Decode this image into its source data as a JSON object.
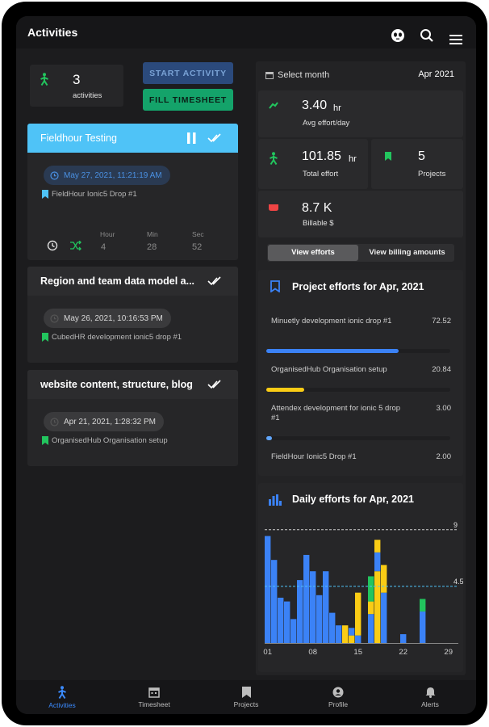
{
  "appbar": {
    "title": "Activities"
  },
  "summary": {
    "count": "3",
    "count_label": "activities"
  },
  "buttons": {
    "start_activity": "START ACTIVITY",
    "fill_timesheet": "FILL TIMESHEET"
  },
  "activities": [
    {
      "title": "Fieldhour Testing",
      "datetime": "May 27, 2021, 11:21:19 AM",
      "project": "FieldHour Ionic5 Drop #1",
      "timer": {
        "hour_label": "Hour",
        "min_label": "Min",
        "sec_label": "Sec",
        "hour": "4",
        "min": "28",
        "sec": "52"
      }
    },
    {
      "title": "Region and team data model a...",
      "datetime": "May 26, 2021, 10:16:53 PM",
      "project": "CubedHR development ionic5 drop #1"
    },
    {
      "title": "website content, structure, blog",
      "datetime": "Apr 21, 2021, 1:28:32 PM",
      "project": "OrganisedHub Organisation setup"
    }
  ],
  "month": {
    "label": "Select month",
    "value": "Apr 2021"
  },
  "stats": {
    "avg": {
      "value": "3.40",
      "unit": "hr",
      "label": "Avg effort/day"
    },
    "total": {
      "value": "101.85",
      "unit": "hr",
      "label": "Total effort"
    },
    "projects": {
      "value": "5",
      "label": "Projects"
    },
    "billable": {
      "value": "8.7 K",
      "label": "Billable $"
    }
  },
  "toggle": {
    "efforts": "View efforts",
    "billing": "View billing amounts",
    "selected": "efforts"
  },
  "project_efforts": {
    "title": "Project efforts for Apr, 2021",
    "max": 72.52,
    "items": [
      {
        "name": "Minuetly development ionic drop #1",
        "value": "72.52",
        "amount": 72.52,
        "color": "#3b82f6"
      },
      {
        "name": "OrganisedHub Organisation setup",
        "value": "20.84",
        "amount": 20.84,
        "color": "#facc15"
      },
      {
        "name": "Attendex development for ionic 5 drop #1",
        "value": "3.00",
        "amount": 3.0,
        "color": "#60a5fa"
      },
      {
        "name": "FieldHour Ionic5 Drop #1",
        "value": "2.00",
        "amount": 2.0,
        "color": "#22c55e"
      }
    ]
  },
  "chart_data": {
    "type": "bar",
    "title": "Daily efforts for Apr, 2021",
    "stacked": true,
    "x": [
      1,
      2,
      3,
      4,
      5,
      6,
      7,
      8,
      9,
      10,
      11,
      12,
      13,
      14,
      15,
      16,
      17,
      18,
      19,
      20,
      21,
      22,
      23,
      24,
      25,
      26,
      27,
      28,
      29
    ],
    "x_tick_labels": [
      "01",
      "08",
      "15",
      "22",
      "29"
    ],
    "ylim": [
      0,
      9.5
    ],
    "reference_lines": [
      {
        "value": 9,
        "label": "9",
        "style": "dashed"
      },
      {
        "value": 4.5,
        "label": "4.5",
        "style": "dashed"
      }
    ],
    "series": [
      {
        "color": "#3b82f6",
        "values": [
          8.5,
          6.6,
          3.6,
          3.3,
          1.9,
          5.0,
          7.0,
          5.7,
          3.8,
          5.7,
          2.4,
          1.4,
          0,
          0,
          0.6,
          0,
          2.3,
          0,
          4.0,
          0,
          0,
          0,
          0,
          0,
          2.5,
          0,
          0,
          0,
          0
        ]
      },
      {
        "color": "#facc15",
        "values": [
          0,
          0,
          0,
          0,
          0,
          0,
          0,
          0,
          0,
          0,
          0,
          0,
          1.4,
          0.6,
          3.4,
          0,
          1.0,
          5.7,
          2.2,
          0,
          0,
          0,
          0,
          0,
          0,
          0,
          0,
          0,
          0
        ]
      },
      {
        "color": "#22c55e",
        "values": [
          0,
          0,
          0,
          0,
          0,
          0,
          0,
          0,
          0,
          0,
          0,
          0,
          0,
          0,
          0,
          0,
          2.0,
          0,
          0,
          0,
          0,
          0,
          0,
          0,
          0,
          0,
          0,
          0,
          0
        ]
      },
      {
        "color": "#3b82f6",
        "values": [
          0,
          0,
          0,
          0,
          0,
          0,
          0,
          0,
          0,
          0,
          0,
          0,
          0,
          0.6,
          0,
          0,
          0,
          1.5,
          0,
          0,
          0,
          0,
          0,
          0,
          0,
          0,
          0,
          0,
          0
        ]
      },
      {
        "color": "#facc15",
        "values": [
          0,
          0,
          0,
          0,
          0,
          0,
          0,
          0,
          0,
          0,
          0,
          0,
          0,
          0,
          0,
          0,
          0,
          1.0,
          0,
          0,
          0,
          0,
          0,
          0,
          0,
          0,
          0,
          0,
          0
        ]
      },
      {
        "color": "#3b82f6",
        "values": [
          0,
          0,
          0,
          0,
          0,
          0,
          0,
          0,
          0,
          0,
          0,
          0,
          0,
          0,
          0,
          0,
          0,
          0,
          0,
          0,
          0,
          0.7,
          0,
          0,
          0,
          0,
          0,
          0,
          0
        ]
      },
      {
        "color": "#22c55e",
        "values": [
          0,
          0,
          0,
          0,
          0,
          0,
          0,
          0,
          0,
          0,
          0,
          0,
          0,
          0,
          0,
          0,
          0,
          0,
          0,
          0,
          0,
          0,
          0,
          0,
          1.0,
          0,
          0,
          0,
          0
        ]
      }
    ]
  },
  "tabs": [
    {
      "label": "Activities",
      "icon": "person-walking-icon",
      "active": true
    },
    {
      "label": "Timesheet",
      "icon": "calendar-icon",
      "active": false
    },
    {
      "label": "Projects",
      "icon": "bookmark-icon",
      "active": false
    },
    {
      "label": "Profile",
      "icon": "user-circle-icon",
      "active": false
    },
    {
      "label": "Alerts",
      "icon": "bell-icon",
      "active": false
    }
  ],
  "colors": {
    "accent": "#4fc3f7",
    "blue": "#3b82f6",
    "yellow": "#facc15",
    "green": "#22c55e",
    "background": "#1c1c1e"
  }
}
